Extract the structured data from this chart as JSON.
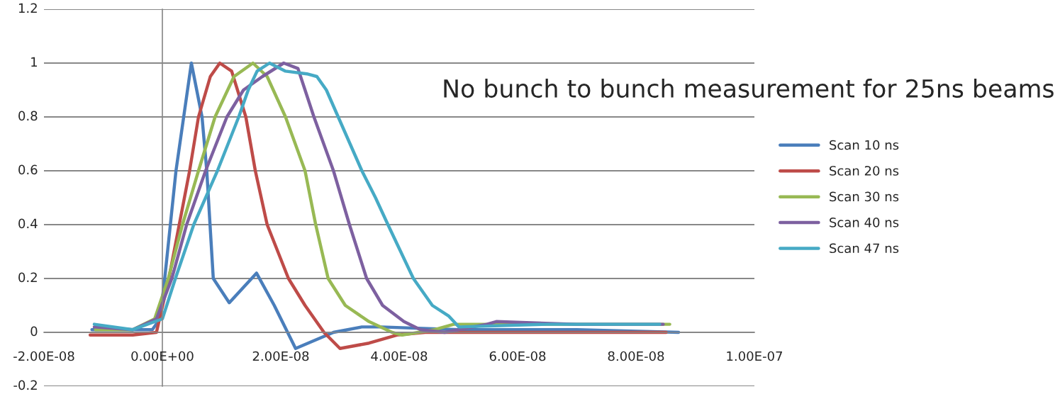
{
  "chart_data": {
    "type": "line",
    "annotations": [
      "No bunch to bunch measurement for 25ns beams"
    ],
    "xlim": [
      -2e-08,
      1e-07
    ],
    "xticks": [
      {
        "value": -2e-08,
        "label": "-2.00E-08"
      },
      {
        "value": 0,
        "label": "0.00E+00"
      },
      {
        "value": 2e-08,
        "label": "2.00E-08"
      },
      {
        "value": 4e-08,
        "label": "4.00E-08"
      },
      {
        "value": 6e-08,
        "label": "6.00E-08"
      },
      {
        "value": 8e-08,
        "label": "8.00E-08"
      },
      {
        "value": 1e-07,
        "label": "1.00E-07"
      }
    ],
    "ylim": [
      -0.2,
      1.2
    ],
    "yticks": [
      -0.2,
      0,
      0.2,
      0.4,
      0.6,
      0.8,
      1,
      1.2
    ],
    "grid": "y",
    "legend": "right",
    "marker": "none",
    "line_style": "solid",
    "series": [
      {
        "name": "Scan 10 ns",
        "color": "#4a7ebb",
        "x": [
          -1.19e-08,
          -5e-09,
          -1.7e-09,
          -4e-10,
          4e-10,
          2.3e-09,
          4.9e-09,
          6.7e-09,
          7.5e-09,
          8.6e-09,
          1.13e-08,
          1.59e-08,
          1.89e-08,
          2.25e-08,
          2.89e-08,
          3.37e-08,
          3.7e-08,
          5e-08,
          7e-08,
          8.72e-08
        ],
        "values": [
          0.01,
          0.01,
          0.01,
          0.05,
          0.2,
          0.6,
          1.0,
          0.8,
          0.6,
          0.2,
          0.11,
          0.22,
          0.1,
          -0.06,
          0.0,
          0.02,
          0.02,
          0.01,
          0.01,
          0.0
        ]
      },
      {
        "name": "Scan 20 ns",
        "color": "#be4b48",
        "x": [
          -1.22e-08,
          -5e-09,
          -1e-09,
          1.1e-09,
          4.6e-09,
          6.1e-09,
          8.1e-09,
          9.7e-09,
          1.17e-08,
          1.41e-08,
          1.57e-08,
          1.77e-08,
          2.13e-08,
          2.41e-08,
          2.73e-08,
          3e-08,
          3.49e-08,
          3.96e-08,
          4.44e-08,
          6.5e-08,
          8.51e-08
        ],
        "values": [
          -0.01,
          -0.01,
          0.0,
          0.2,
          0.6,
          0.8,
          0.95,
          1.0,
          0.97,
          0.8,
          0.6,
          0.4,
          0.2,
          0.1,
          0.0,
          -0.06,
          -0.04,
          -0.01,
          0.0,
          0.0,
          0.0
        ]
      },
      {
        "name": "Scan 30 ns",
        "color": "#98b954",
        "x": [
          -1.13e-08,
          -5e-09,
          -1.3e-09,
          1e-09,
          3.4e-09,
          6.1e-09,
          8.9e-09,
          1.21e-08,
          1.53e-08,
          1.77e-08,
          2.08e-08,
          2.41e-08,
          2.59e-08,
          2.8e-08,
          3.09e-08,
          3.49e-08,
          3.88e-08,
          4.05e-08,
          4.6e-08,
          4.92e-08,
          6.5e-08,
          8.57e-08
        ],
        "values": [
          0.01,
          0.01,
          0.05,
          0.2,
          0.4,
          0.6,
          0.8,
          0.95,
          1.0,
          0.95,
          0.8,
          0.6,
          0.4,
          0.2,
          0.1,
          0.04,
          0.0,
          -0.01,
          0.01,
          0.03,
          0.03,
          0.03
        ]
      },
      {
        "name": "Scan 40 ns",
        "color": "#7d60a0",
        "x": [
          -1.15e-08,
          -5e-09,
          -1e-09,
          1.6e-09,
          4.1e-09,
          7.3e-09,
          1.09e-08,
          1.37e-08,
          1.69e-08,
          2.05e-08,
          2.29e-08,
          2.41e-08,
          2.56e-08,
          2.89e-08,
          3.16e-08,
          3.45e-08,
          3.72e-08,
          4.08e-08,
          4.36e-08,
          4.77e-08,
          5.48e-08,
          5.64e-08,
          7e-08,
          8.46e-08
        ],
        "values": [
          0.02,
          0.01,
          0.05,
          0.2,
          0.4,
          0.6,
          0.8,
          0.9,
          0.95,
          1.0,
          0.98,
          0.9,
          0.8,
          0.6,
          0.4,
          0.2,
          0.1,
          0.04,
          0.01,
          0.0,
          0.03,
          0.04,
          0.03,
          0.03
        ]
      },
      {
        "name": "Scan 47 ns",
        "color": "#46aac5",
        "x": [
          -1.15e-08,
          -5e-09,
          0,
          2.2e-09,
          5.3e-09,
          9.3e-09,
          1.29e-08,
          1.45e-08,
          1.6e-08,
          1.81e-08,
          2.08e-08,
          2.44e-08,
          2.61e-08,
          2.77e-08,
          2.97e-08,
          3.37e-08,
          3.6e-08,
          3.81e-08,
          4.24e-08,
          4.56e-08,
          4.84e-08,
          5.01e-08,
          6.5e-08,
          8.4e-08
        ],
        "values": [
          0.03,
          0.01,
          0.05,
          0.2,
          0.4,
          0.6,
          0.8,
          0.9,
          0.97,
          1.0,
          0.97,
          0.96,
          0.95,
          0.9,
          0.8,
          0.6,
          0.5,
          0.4,
          0.2,
          0.1,
          0.06,
          0.02,
          0.03,
          0.03
        ]
      }
    ]
  }
}
